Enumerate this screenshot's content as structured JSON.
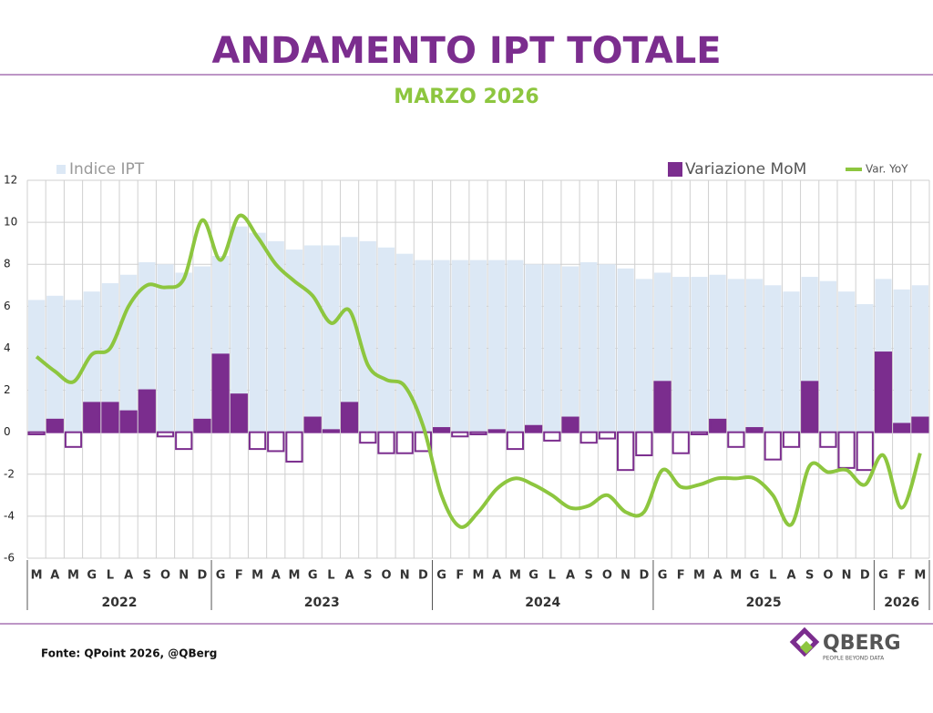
{
  "chart_data": {
    "type": "bar",
    "title": "ANDAMENTO IPT TOTALE",
    "subtitle": "MARZO 2026",
    "categories": [
      "M",
      "A",
      "M",
      "G",
      "L",
      "A",
      "S",
      "O",
      "N",
      "D",
      "G",
      "F",
      "M",
      "A",
      "M",
      "G",
      "L",
      "A",
      "S",
      "O",
      "N",
      "D",
      "G",
      "F",
      "M",
      "A",
      "M",
      "G",
      "L",
      "A",
      "S",
      "O",
      "N",
      "D",
      "G",
      "F",
      "M",
      "A",
      "M",
      "G",
      "L",
      "A",
      "S",
      "O",
      "N",
      "D",
      "G",
      "F",
      "M"
    ],
    "x_groups": [
      {
        "label": "2022",
        "size": 10
      },
      {
        "label": "2023",
        "size": 12
      },
      {
        "label": "2024",
        "size": 12
      },
      {
        "label": "2025",
        "size": 12
      },
      {
        "label": "2026",
        "size": 3
      }
    ],
    "series": [
      {
        "name": "Indice IPT",
        "type": "bar",
        "color": "#dce8f5",
        "values": [
          6.3,
          6.5,
          6.3,
          6.7,
          7.1,
          7.5,
          8.1,
          8.0,
          7.6,
          7.9,
          8.4,
          9.8,
          9.5,
          9.1,
          8.7,
          8.9,
          8.9,
          9.3,
          9.1,
          8.8,
          8.5,
          8.2,
          8.2,
          8.2,
          8.2,
          8.2,
          8.2,
          8.0,
          8.0,
          7.9,
          8.1,
          8.0,
          7.8,
          7.3,
          7.6,
          7.4,
          7.4,
          7.5,
          7.3,
          7.3,
          7.0,
          6.7,
          7.4,
          7.2,
          6.7,
          6.1,
          7.3,
          6.8,
          7.0
        ]
      },
      {
        "name": "Variazione MoM",
        "type": "bar",
        "color": "#7b2d8e",
        "values": [
          -0.1,
          0.6,
          -0.7,
          1.4,
          1.4,
          1.0,
          2.0,
          -0.2,
          -0.8,
          0.6,
          3.7,
          1.8,
          -0.8,
          -0.9,
          -1.4,
          0.7,
          0.1,
          1.4,
          -0.5,
          -1.0,
          -1.0,
          -0.9,
          0.2,
          -0.2,
          -0.1,
          0.1,
          -0.8,
          0.3,
          -0.4,
          0.7,
          -0.5,
          -0.3,
          -1.8,
          -1.1,
          2.4,
          -1.0,
          -0.1,
          0.6,
          -0.7,
          0.2,
          -1.3,
          -0.7,
          2.4,
          -0.7,
          -1.7,
          -1.8,
          3.8,
          0.4,
          0.7
        ]
      },
      {
        "name": "Var. YoY",
        "type": "line",
        "color": "#8dc63f",
        "values": [
          3.6,
          2.9,
          2.4,
          3.7,
          4.0,
          6.0,
          7.0,
          6.9,
          7.3,
          10.1,
          8.2,
          10.3,
          9.3,
          8.0,
          7.2,
          6.5,
          5.2,
          5.8,
          3.2,
          2.5,
          2.2,
          0.3,
          -3.0,
          -4.5,
          -3.8,
          -2.7,
          -2.2,
          -2.5,
          -3.0,
          -3.6,
          -3.5,
          -3.0,
          -3.8,
          -3.8,
          -1.8,
          -2.6,
          -2.5,
          -2.2,
          -2.2,
          -2.2,
          -3.0,
          -4.4,
          -1.6,
          -1.9,
          -1.8,
          -2.5,
          -1.1,
          -3.6,
          -1.0
        ]
      }
    ],
    "ylim": [
      -6,
      12
    ],
    "yticks": [
      -6,
      -4,
      -2,
      0,
      2,
      4,
      6,
      8,
      10,
      12
    ],
    "grid": true
  },
  "source": "Fonte: QPoint 2026, @QBerg",
  "logo": {
    "name": "QBERG",
    "tagline": "PEOPLE BEYOND DATA"
  }
}
